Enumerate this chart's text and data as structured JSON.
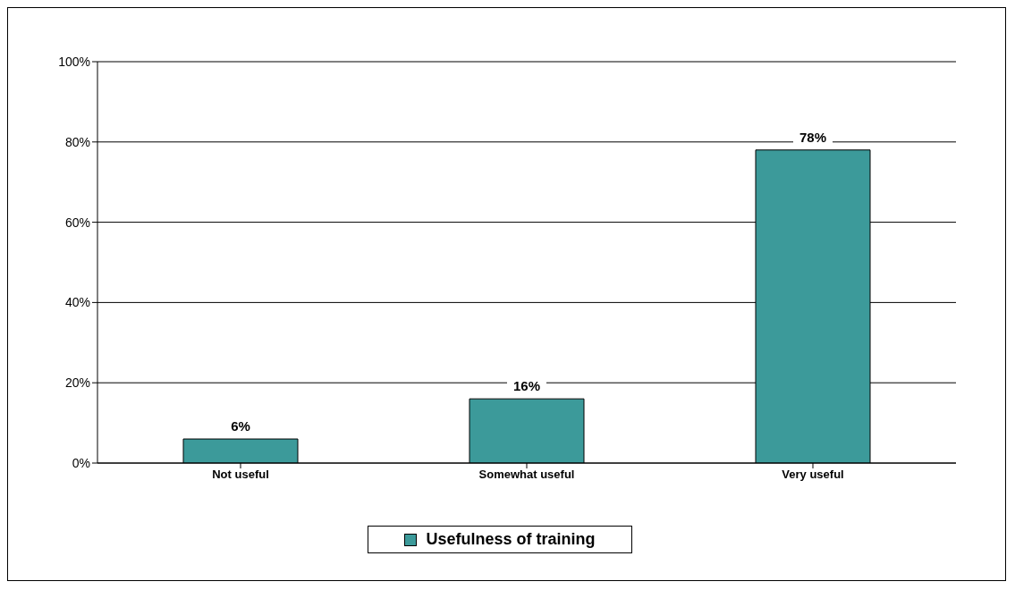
{
  "chart_data": {
    "type": "bar",
    "categories": [
      "Not useful",
      "Somewhat useful",
      "Very useful"
    ],
    "series": [
      {
        "name": "Usefulness of training",
        "color": "#3c9a9a",
        "values": [
          6,
          16,
          78
        ],
        "value_labels": [
          "6%",
          "16%",
          "78%"
        ]
      }
    ],
    "ylim": [
      0,
      100
    ],
    "yticks": [
      {
        "value": 0,
        "label": "0%"
      },
      {
        "value": 20,
        "label": "20%"
      },
      {
        "value": 40,
        "label": "40%"
      },
      {
        "value": 60,
        "label": "60%"
      },
      {
        "value": 80,
        "label": "80%"
      },
      {
        "value": 100,
        "label": "100%"
      }
    ],
    "grid": "y",
    "legend": "bottom"
  }
}
